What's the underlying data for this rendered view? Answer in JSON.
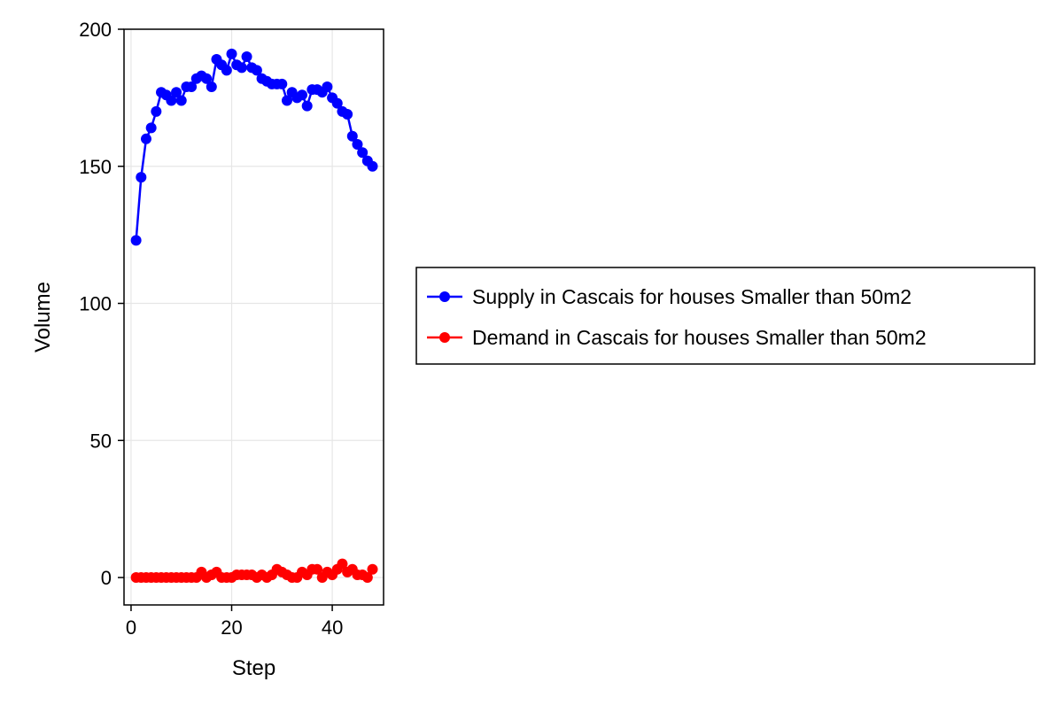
{
  "chart_data": {
    "type": "line",
    "title": "",
    "xlabel": "Step",
    "ylabel": "Volume",
    "xlim": [
      -1.4,
      50.2
    ],
    "ylim": [
      -10,
      200
    ],
    "xticks": [
      0,
      20,
      40
    ],
    "yticks": [
      0,
      50,
      100,
      150,
      200
    ],
    "grid": true,
    "legend_position": "right",
    "x": [
      1,
      2,
      3,
      4,
      5,
      6,
      7,
      8,
      9,
      10,
      11,
      12,
      13,
      14,
      15,
      16,
      17,
      18,
      19,
      20,
      21,
      22,
      23,
      24,
      25,
      26,
      27,
      28,
      29,
      30,
      31,
      32,
      33,
      34,
      35,
      36,
      37,
      38,
      39,
      40,
      41,
      42,
      43,
      44,
      45,
      46,
      47,
      48
    ],
    "series": [
      {
        "name": "Supply in Cascais for houses Smaller than 50m2",
        "color": "#0000ff",
        "values": [
          123,
          146,
          160,
          164,
          170,
          177,
          176,
          174,
          177,
          174,
          179,
          179,
          182,
          183,
          182,
          179,
          189,
          187,
          185,
          191,
          187,
          186,
          190,
          186,
          185,
          182,
          181,
          180,
          180,
          180,
          174,
          177,
          175,
          176,
          172,
          178,
          178,
          177,
          179,
          175,
          173,
          170,
          169,
          161,
          158,
          155,
          152,
          150
        ]
      },
      {
        "name": "Demand in Cascais for houses Smaller than 50m2",
        "color": "#ff0000",
        "values": [
          0,
          0,
          0,
          0,
          0,
          0,
          0,
          0,
          0,
          0,
          0,
          0,
          0,
          2,
          0,
          1,
          2,
          0,
          0,
          0,
          1,
          1,
          1,
          1,
          0,
          1,
          0,
          1,
          3,
          2,
          1,
          0,
          0,
          2,
          1,
          3,
          3,
          0,
          2,
          1,
          3,
          5,
          2,
          3,
          1,
          1,
          0,
          3
        ]
      }
    ]
  }
}
